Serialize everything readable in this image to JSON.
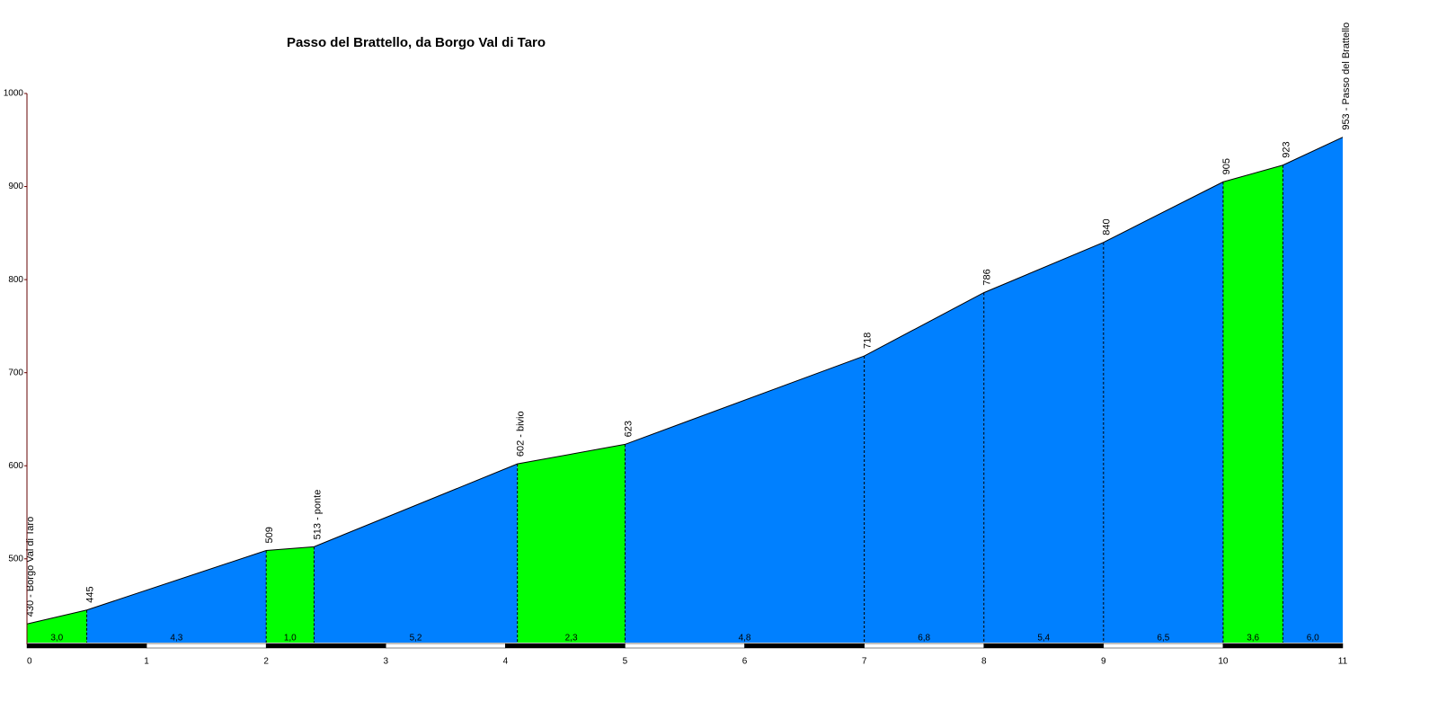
{
  "chart_data": {
    "type": "area",
    "title": "Passo del Brattello, da Borgo Val di Taro",
    "x": [
      0,
      0.5,
      2,
      2.4,
      4.1,
      5,
      7,
      8,
      9,
      10,
      10.5,
      11
    ],
    "values": [
      430,
      445,
      509,
      513,
      602,
      623,
      718,
      786,
      840,
      905,
      923,
      953
    ],
    "value_labels": [
      "430 - Borgo Val di Taro",
      "445",
      "509",
      "513 - ponte",
      "602 - bivio",
      "623",
      "718",
      "786",
      "840",
      "905",
      "923",
      "953 - Passo del Brattello"
    ],
    "segments": {
      "values": [
        3.0,
        4.3,
        1.0,
        5.2,
        2.3,
        4.8,
        6.8,
        5.4,
        6.5,
        3.6,
        6.0
      ],
      "value_labels": [
        "3,0",
        "4,3",
        "1,0",
        "5,2",
        "2,3",
        "4,8",
        "6,8",
        "5,4",
        "6,5",
        "3,6",
        "6,0"
      ],
      "colors": [
        "#00ff00",
        "#0080ff",
        "#00ff00",
        "#0080ff",
        "#00ff00",
        "#0080ff",
        "#0080ff",
        "#0080ff",
        "#0080ff",
        "#00ff00",
        "#0080ff"
      ]
    },
    "xlim": [
      0,
      11
    ],
    "xticks": [
      0,
      1,
      2,
      3,
      4,
      5,
      6,
      7,
      8,
      9,
      10,
      11
    ],
    "ylim": [
      410,
      1000
    ],
    "yticks": [
      500,
      600,
      700,
      800,
      900,
      1000
    ]
  }
}
